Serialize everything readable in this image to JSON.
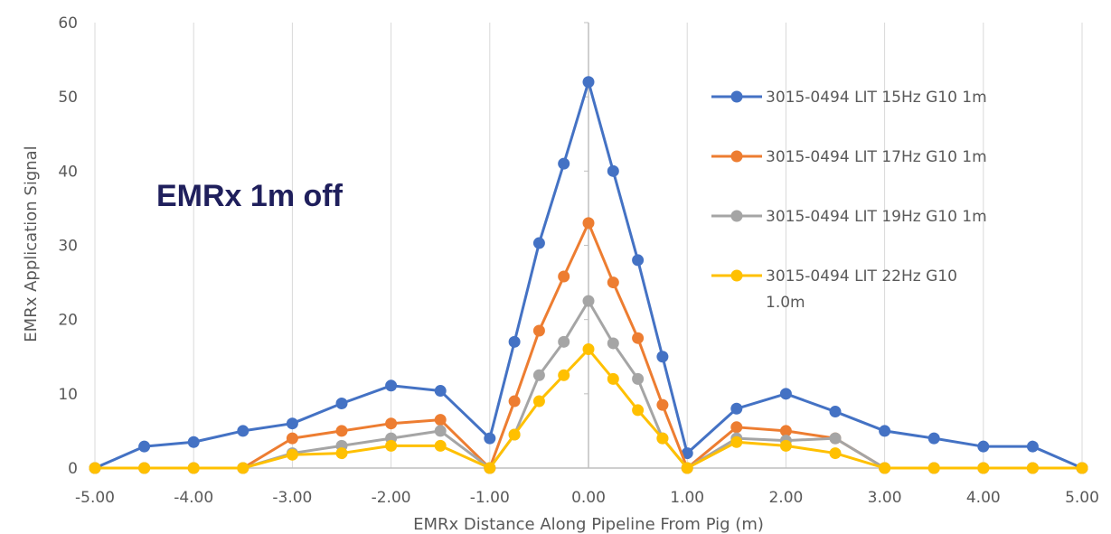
{
  "chart_data": {
    "type": "line",
    "title": "",
    "xlabel": "EMRx Distance Along Pipeline From Pig (m)",
    "ylabel": "EMRx Application Signal",
    "xlim": [
      -5,
      5
    ],
    "ylim": [
      0,
      60
    ],
    "x_ticks": [
      -5,
      -4,
      -3,
      -2,
      -1,
      0,
      1,
      2,
      3,
      4,
      5
    ],
    "x_tick_labels": [
      "-5.00",
      "-4.00",
      "-3.00",
      "-2.00",
      "-1.00",
      "0.00",
      "1.00",
      "2.00",
      "3.00",
      "4.00",
      "5.00"
    ],
    "y_ticks": [
      0,
      10,
      20,
      30,
      40,
      50,
      60
    ],
    "y_tick_labels": [
      "0",
      "10",
      "20",
      "30",
      "40",
      "50",
      "60"
    ],
    "grid": "vertical",
    "legend_position": "right",
    "annotation": "EMRx 1m off",
    "series": [
      {
        "name": "3015-0494 LIT 15Hz G10 1m",
        "legend_lines": [
          "3015-0494 LIT 15Hz G10 1m"
        ],
        "color": "#4472C4",
        "points": [
          [
            -5,
            0
          ],
          [
            -4.5,
            2.9
          ],
          [
            -4,
            3.5
          ],
          [
            -3.5,
            5
          ],
          [
            -3,
            6
          ],
          [
            -2.5,
            8.7
          ],
          [
            -2,
            11.1
          ],
          [
            -1.5,
            10.4
          ],
          [
            -1,
            4
          ],
          [
            -0.75,
            17
          ],
          [
            -0.5,
            30.3
          ],
          [
            -0.25,
            41
          ],
          [
            0,
            52
          ],
          [
            0.25,
            40
          ],
          [
            0.5,
            28
          ],
          [
            0.75,
            15
          ],
          [
            1,
            2
          ],
          [
            1.5,
            8
          ],
          [
            2,
            10
          ],
          [
            2.5,
            7.6
          ],
          [
            3,
            5
          ],
          [
            3.5,
            4
          ],
          [
            4,
            2.9
          ],
          [
            4.5,
            2.9
          ],
          [
            5,
            0
          ]
        ]
      },
      {
        "name": "3015-0494 LIT 17Hz G10 1m",
        "legend_lines": [
          "3015-0494 LIT 17Hz G10 1m"
        ],
        "color": "#ED7D31",
        "points": [
          [
            -5,
            0
          ],
          [
            -4.5,
            0
          ],
          [
            -4,
            0
          ],
          [
            -3.5,
            0
          ],
          [
            -3,
            4
          ],
          [
            -2.5,
            5
          ],
          [
            -2,
            6
          ],
          [
            -1.5,
            6.5
          ],
          [
            -1,
            0
          ],
          [
            -0.75,
            9
          ],
          [
            -0.5,
            18.5
          ],
          [
            -0.25,
            25.8
          ],
          [
            0,
            33
          ],
          [
            0.25,
            25
          ],
          [
            0.5,
            17.5
          ],
          [
            0.75,
            8.5
          ],
          [
            1,
            0
          ],
          [
            1.5,
            5.5
          ],
          [
            2,
            5
          ],
          [
            2.5,
            4
          ],
          [
            3,
            0
          ],
          [
            3.5,
            0
          ],
          [
            4,
            0
          ],
          [
            4.5,
            0
          ],
          [
            5,
            0
          ]
        ]
      },
      {
        "name": "3015-0494 LIT 19Hz G10 1m",
        "legend_lines": [
          "3015-0494 LIT 19Hz G10 1m"
        ],
        "color": "#A5A5A5",
        "points": [
          [
            -5,
            0
          ],
          [
            -4.5,
            0
          ],
          [
            -4,
            0
          ],
          [
            -3.5,
            0
          ],
          [
            -3,
            2
          ],
          [
            -2.5,
            3
          ],
          [
            -2,
            4
          ],
          [
            -1.5,
            5
          ],
          [
            -1,
            0
          ],
          [
            -0.75,
            4.5
          ],
          [
            -0.5,
            12.5
          ],
          [
            -0.25,
            17
          ],
          [
            0,
            22.5
          ],
          [
            0.25,
            16.8
          ],
          [
            0.5,
            12
          ],
          [
            0.75,
            4
          ],
          [
            1,
            0
          ],
          [
            1.5,
            4
          ],
          [
            2,
            3.7
          ],
          [
            2.5,
            4
          ],
          [
            3,
            0
          ],
          [
            3.5,
            0
          ],
          [
            4,
            0
          ],
          [
            4.5,
            0
          ],
          [
            5,
            0
          ]
        ]
      },
      {
        "name": "3015-0494 LIT 22Hz G10 1.0m",
        "legend_lines": [
          "3015-0494 LIT 22Hz G10",
          "1.0m"
        ],
        "color": "#FFC000",
        "points": [
          [
            -5,
            0
          ],
          [
            -4.5,
            0
          ],
          [
            -4,
            0
          ],
          [
            -3.5,
            0
          ],
          [
            -3,
            1.8
          ],
          [
            -2.5,
            2
          ],
          [
            -2,
            3
          ],
          [
            -1.5,
            3
          ],
          [
            -1,
            0
          ],
          [
            -0.75,
            4.5
          ],
          [
            -0.5,
            9
          ],
          [
            -0.25,
            12.5
          ],
          [
            0,
            16
          ],
          [
            0.25,
            12
          ],
          [
            0.5,
            7.8
          ],
          [
            0.75,
            4
          ],
          [
            1,
            0
          ],
          [
            1.5,
            3.5
          ],
          [
            2,
            3
          ],
          [
            2.5,
            2
          ],
          [
            3,
            0
          ],
          [
            3.5,
            0
          ],
          [
            4,
            0
          ],
          [
            4.5,
            0
          ],
          [
            5,
            0
          ]
        ]
      }
    ]
  }
}
